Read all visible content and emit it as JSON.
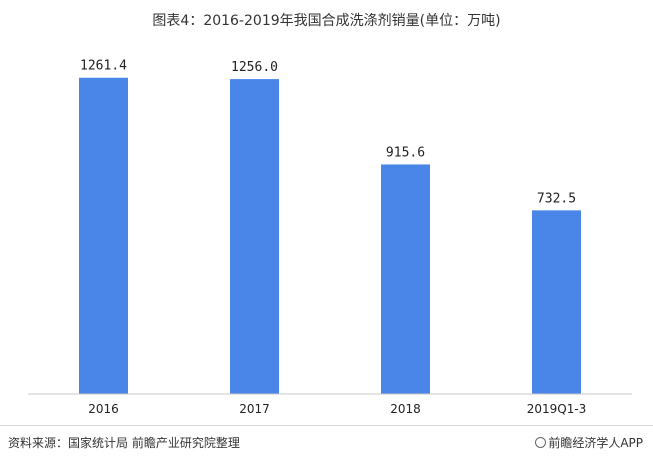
{
  "chart_data": {
    "type": "bar",
    "title": "图表4：2016-2019年我国合成洗涤剂销量(单位：万吨)",
    "categories": [
      "2016",
      "2017",
      "2018",
      "2019Q1-3"
    ],
    "values": [
      1261.4,
      1256.0,
      915.6,
      732.5
    ],
    "value_labels": [
      "1261.4",
      "1256.0",
      "915.6",
      "732.5"
    ],
    "ylim": [
      0,
      1400
    ],
    "grid": false,
    "bar_color": "#4a86e8"
  },
  "footer": {
    "source": "资料来源：国家统计局 前瞻产业研究院整理",
    "brand": "前瞻经济学人APP",
    "brand_icon": "qianzhan-logo-icon"
  }
}
